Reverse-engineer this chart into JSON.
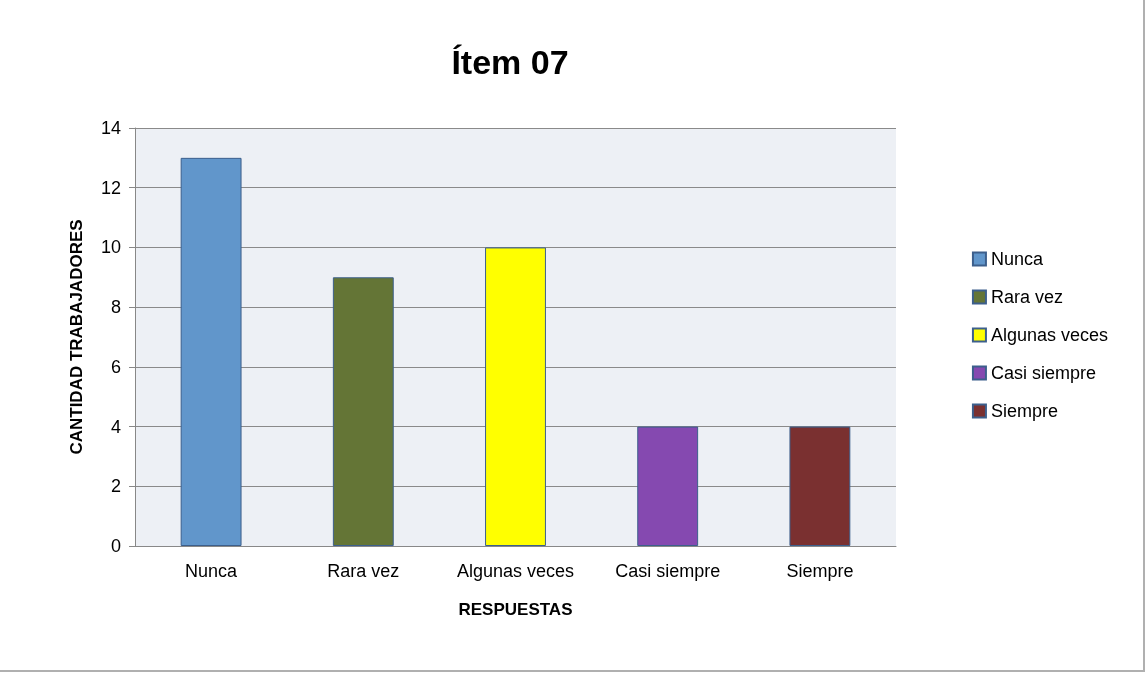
{
  "chart_data": {
    "type": "bar",
    "title": "Ítem 07",
    "xlabel": "RESPUESTAS",
    "ylabel": "CANTIDAD TRABAJADORES",
    "categories": [
      "Nunca",
      "Rara vez",
      "Algunas veces",
      "Casi siempre",
      "Siempre"
    ],
    "series": [
      {
        "name": "Nunca",
        "color": "#6196cb",
        "values": [
          13,
          null,
          null,
          null,
          null
        ]
      },
      {
        "name": "Rara vez",
        "color": "#647536",
        "values": [
          null,
          9,
          null,
          null,
          null
        ]
      },
      {
        "name": "Algunas veces",
        "color": "#ffff00",
        "values": [
          null,
          null,
          10,
          null,
          null
        ]
      },
      {
        "name": "Casi siempre",
        "color": "#8549b0",
        "values": [
          null,
          null,
          null,
          4,
          null
        ]
      },
      {
        "name": "Siempre",
        "color": "#7a3030",
        "values": [
          null,
          null,
          null,
          null,
          4
        ]
      }
    ],
    "ylim": [
      0,
      14
    ],
    "yticks": [
      0,
      2,
      4,
      6,
      8,
      10,
      12,
      14
    ],
    "grid": "y",
    "legend": "right"
  }
}
